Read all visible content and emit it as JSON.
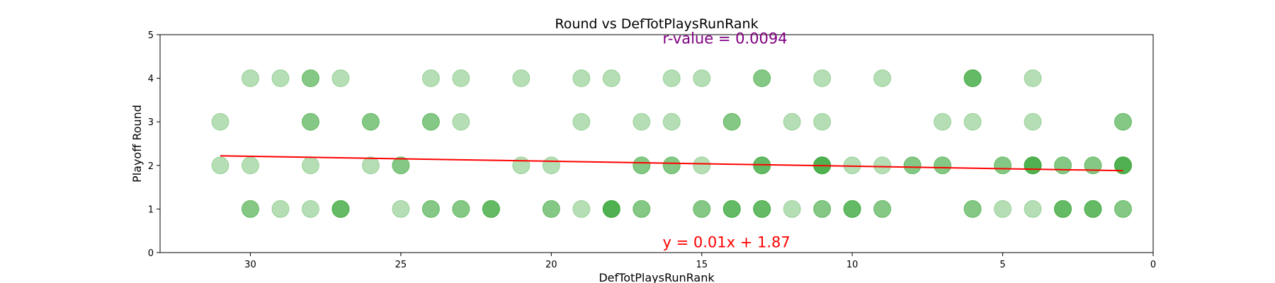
{
  "chart_data": {
    "type": "scatter",
    "title": "Round vs DefTotPlaysRunRank",
    "xlabel": "DefTotPlaysRunRank",
    "ylabel": "Playoff Round",
    "xlim": [
      33,
      0
    ],
    "ylim": [
      0,
      5
    ],
    "x_inverted": true,
    "xticks": [
      30,
      25,
      20,
      15,
      10,
      5,
      0
    ],
    "yticks": [
      0,
      1,
      2,
      3,
      4,
      5
    ],
    "grid": false,
    "points": [
      {
        "x": 30,
        "y": 4
      },
      {
        "x": 29,
        "y": 4
      },
      {
        "x": 28,
        "y": 4
      },
      {
        "x": 28,
        "y": 4
      },
      {
        "x": 27,
        "y": 4
      },
      {
        "x": 24,
        "y": 4
      },
      {
        "x": 23,
        "y": 4
      },
      {
        "x": 21,
        "y": 4
      },
      {
        "x": 19,
        "y": 4
      },
      {
        "x": 18,
        "y": 4
      },
      {
        "x": 16,
        "y": 4
      },
      {
        "x": 15,
        "y": 4
      },
      {
        "x": 13,
        "y": 4
      },
      {
        "x": 13,
        "y": 4
      },
      {
        "x": 11,
        "y": 4
      },
      {
        "x": 9,
        "y": 4
      },
      {
        "x": 6,
        "y": 4
      },
      {
        "x": 6,
        "y": 4
      },
      {
        "x": 6,
        "y": 4
      },
      {
        "x": 4,
        "y": 4
      },
      {
        "x": 31,
        "y": 3
      },
      {
        "x": 28,
        "y": 3
      },
      {
        "x": 28,
        "y": 3
      },
      {
        "x": 26,
        "y": 3
      },
      {
        "x": 26,
        "y": 3
      },
      {
        "x": 24,
        "y": 3
      },
      {
        "x": 24,
        "y": 3
      },
      {
        "x": 23,
        "y": 3
      },
      {
        "x": 19,
        "y": 3
      },
      {
        "x": 17,
        "y": 3
      },
      {
        "x": 16,
        "y": 3
      },
      {
        "x": 14,
        "y": 3
      },
      {
        "x": 14,
        "y": 3
      },
      {
        "x": 12,
        "y": 3
      },
      {
        "x": 11,
        "y": 3
      },
      {
        "x": 7,
        "y": 3
      },
      {
        "x": 6,
        "y": 3
      },
      {
        "x": 4,
        "y": 3
      },
      {
        "x": 1,
        "y": 3
      },
      {
        "x": 1,
        "y": 3
      },
      {
        "x": 31,
        "y": 2
      },
      {
        "x": 30,
        "y": 2
      },
      {
        "x": 28,
        "y": 2
      },
      {
        "x": 26,
        "y": 2
      },
      {
        "x": 25,
        "y": 2
      },
      {
        "x": 25,
        "y": 2
      },
      {
        "x": 21,
        "y": 2
      },
      {
        "x": 20,
        "y": 2
      },
      {
        "x": 17,
        "y": 2
      },
      {
        "x": 17,
        "y": 2
      },
      {
        "x": 16,
        "y": 2
      },
      {
        "x": 16,
        "y": 2
      },
      {
        "x": 15,
        "y": 2
      },
      {
        "x": 13,
        "y": 2
      },
      {
        "x": 13,
        "y": 2
      },
      {
        "x": 13,
        "y": 2
      },
      {
        "x": 11,
        "y": 2
      },
      {
        "x": 11,
        "y": 2
      },
      {
        "x": 11,
        "y": 2
      },
      {
        "x": 11,
        "y": 2
      },
      {
        "x": 10,
        "y": 2
      },
      {
        "x": 9,
        "y": 2
      },
      {
        "x": 8,
        "y": 2
      },
      {
        "x": 8,
        "y": 2
      },
      {
        "x": 7,
        "y": 2
      },
      {
        "x": 7,
        "y": 2
      },
      {
        "x": 5,
        "y": 2
      },
      {
        "x": 5,
        "y": 2
      },
      {
        "x": 4,
        "y": 2
      },
      {
        "x": 4,
        "y": 2
      },
      {
        "x": 4,
        "y": 2
      },
      {
        "x": 4,
        "y": 2
      },
      {
        "x": 3,
        "y": 2
      },
      {
        "x": 3,
        "y": 2
      },
      {
        "x": 2,
        "y": 2
      },
      {
        "x": 2,
        "y": 2
      },
      {
        "x": 1,
        "y": 2
      },
      {
        "x": 1,
        "y": 2
      },
      {
        "x": 1,
        "y": 2
      },
      {
        "x": 1,
        "y": 2
      },
      {
        "x": 30,
        "y": 1
      },
      {
        "x": 30,
        "y": 1
      },
      {
        "x": 29,
        "y": 1
      },
      {
        "x": 28,
        "y": 1
      },
      {
        "x": 27,
        "y": 1
      },
      {
        "x": 27,
        "y": 1
      },
      {
        "x": 27,
        "y": 1
      },
      {
        "x": 25,
        "y": 1
      },
      {
        "x": 24,
        "y": 1
      },
      {
        "x": 24,
        "y": 1
      },
      {
        "x": 23,
        "y": 1
      },
      {
        "x": 23,
        "y": 1
      },
      {
        "x": 22,
        "y": 1
      },
      {
        "x": 22,
        "y": 1
      },
      {
        "x": 22,
        "y": 1
      },
      {
        "x": 20,
        "y": 1
      },
      {
        "x": 20,
        "y": 1
      },
      {
        "x": 19,
        "y": 1
      },
      {
        "x": 18,
        "y": 1
      },
      {
        "x": 18,
        "y": 1
      },
      {
        "x": 18,
        "y": 1
      },
      {
        "x": 18,
        "y": 1
      },
      {
        "x": 17,
        "y": 1
      },
      {
        "x": 17,
        "y": 1
      },
      {
        "x": 15,
        "y": 1
      },
      {
        "x": 15,
        "y": 1
      },
      {
        "x": 14,
        "y": 1
      },
      {
        "x": 14,
        "y": 1
      },
      {
        "x": 14,
        "y": 1
      },
      {
        "x": 13,
        "y": 1
      },
      {
        "x": 13,
        "y": 1
      },
      {
        "x": 13,
        "y": 1
      },
      {
        "x": 12,
        "y": 1
      },
      {
        "x": 11,
        "y": 1
      },
      {
        "x": 11,
        "y": 1
      },
      {
        "x": 10,
        "y": 1
      },
      {
        "x": 10,
        "y": 1
      },
      {
        "x": 10,
        "y": 1
      },
      {
        "x": 9,
        "y": 1
      },
      {
        "x": 9,
        "y": 1
      },
      {
        "x": 6,
        "y": 1
      },
      {
        "x": 6,
        "y": 1
      },
      {
        "x": 5,
        "y": 1
      },
      {
        "x": 4,
        "y": 1
      },
      {
        "x": 3,
        "y": 1
      },
      {
        "x": 3,
        "y": 1
      },
      {
        "x": 3,
        "y": 1
      },
      {
        "x": 2,
        "y": 1
      },
      {
        "x": 2,
        "y": 1
      },
      {
        "x": 2,
        "y": 1
      },
      {
        "x": 1,
        "y": 1
      },
      {
        "x": 1,
        "y": 1
      }
    ],
    "point_color": "#2ca02c",
    "point_alpha": 0.35,
    "trendline": {
      "x_start": 31,
      "x_end": 1,
      "y_start": 2.22,
      "y_end": 1.88,
      "color": "#ff0000",
      "equation_label": "y = 0.01x + 1.87",
      "equation_at": {
        "x": 16.3,
        "y": 0.12
      }
    },
    "r_value": {
      "label": "r-value = 0.0094",
      "color": "#800080",
      "at": {
        "x": 16.3,
        "y": 4.8
      }
    }
  }
}
